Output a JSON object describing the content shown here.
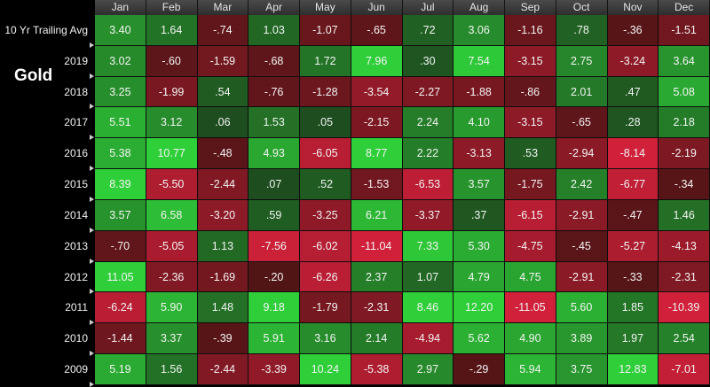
{
  "chart_data": {
    "type": "heatmap",
    "title": "Gold",
    "columns": [
      "Jan",
      "Feb",
      "Mar",
      "Apr",
      "May",
      "Jun",
      "Jul",
      "Aug",
      "Sep",
      "Oct",
      "Nov",
      "Dec"
    ],
    "row_labels": [
      "10 Yr Trailing Avg",
      "2019",
      "2018",
      "2017",
      "2016",
      "2015",
      "2014",
      "2013",
      "2012",
      "2011",
      "2010",
      "2009"
    ],
    "values": [
      [
        "3.40",
        "1.64",
        "-.74",
        "1.03",
        "-1.07",
        "-.65",
        ".72",
        "3.06",
        "-1.16",
        ".78",
        "-.36",
        "-1.51"
      ],
      [
        "3.02",
        "-.60",
        "-1.59",
        "-.68",
        "1.72",
        "7.96",
        ".30",
        "7.54",
        "-3.15",
        "2.75",
        "-3.24",
        "3.64"
      ],
      [
        "3.25",
        "-1.99",
        ".54",
        "-.76",
        "-1.28",
        "-3.54",
        "-2.27",
        "-1.88",
        "-.86",
        "2.01",
        ".47",
        "5.08"
      ],
      [
        "5.51",
        "3.12",
        ".06",
        "1.53",
        ".05",
        "-2.15",
        "2.24",
        "4.10",
        "-3.15",
        "-.65",
        ".28",
        "2.18"
      ],
      [
        "5.38",
        "10.77",
        "-.48",
        "4.93",
        "-6.05",
        "8.77",
        "2.22",
        "-3.13",
        ".53",
        "-2.94",
        "-8.14",
        "-2.19"
      ],
      [
        "8.39",
        "-5.50",
        "-2.44",
        ".07",
        ".52",
        "-1.53",
        "-6.53",
        "3.57",
        "-1.75",
        "2.42",
        "-6.77",
        "-.34"
      ],
      [
        "3.57",
        "6.58",
        "-3.20",
        ".59",
        "-3.25",
        "6.21",
        "-3.37",
        ".37",
        "-6.15",
        "-2.91",
        "-.47",
        "1.46"
      ],
      [
        "-.70",
        "-5.05",
        "1.13",
        "-7.56",
        "-6.02",
        "-11.04",
        "7.33",
        "5.30",
        "-4.75",
        "-.45",
        "-5.27",
        "-4.13"
      ],
      [
        "11.05",
        "-2.36",
        "-1.69",
        "-.20",
        "-6.26",
        "2.37",
        "1.07",
        "4.79",
        "4.75",
        "-2.91",
        "-.33",
        "-2.31"
      ],
      [
        "-6.24",
        "5.90",
        "1.48",
        "9.18",
        "-1.79",
        "-2.31",
        "8.46",
        "12.20",
        "-11.05",
        "5.60",
        "1.85",
        "-10.39"
      ],
      [
        "-1.44",
        "3.37",
        "-.39",
        "5.91",
        "3.16",
        "2.14",
        "-4.94",
        "5.62",
        "4.90",
        "3.89",
        "1.97",
        "2.54"
      ],
      [
        "5.19",
        "1.56",
        "-2.44",
        "-3.39",
        "10.24",
        "-5.38",
        "2.97",
        "-.29",
        "5.94",
        "3.75",
        "12.83",
        "-7.01"
      ]
    ],
    "colors": {
      "positive_low": "#1e4a1e",
      "positive_high": "#2fcf3a",
      "negative_low": "#4a1414",
      "negative_high": "#d0203a",
      "header": "#3a3a3a",
      "background": "#000000"
    }
  }
}
